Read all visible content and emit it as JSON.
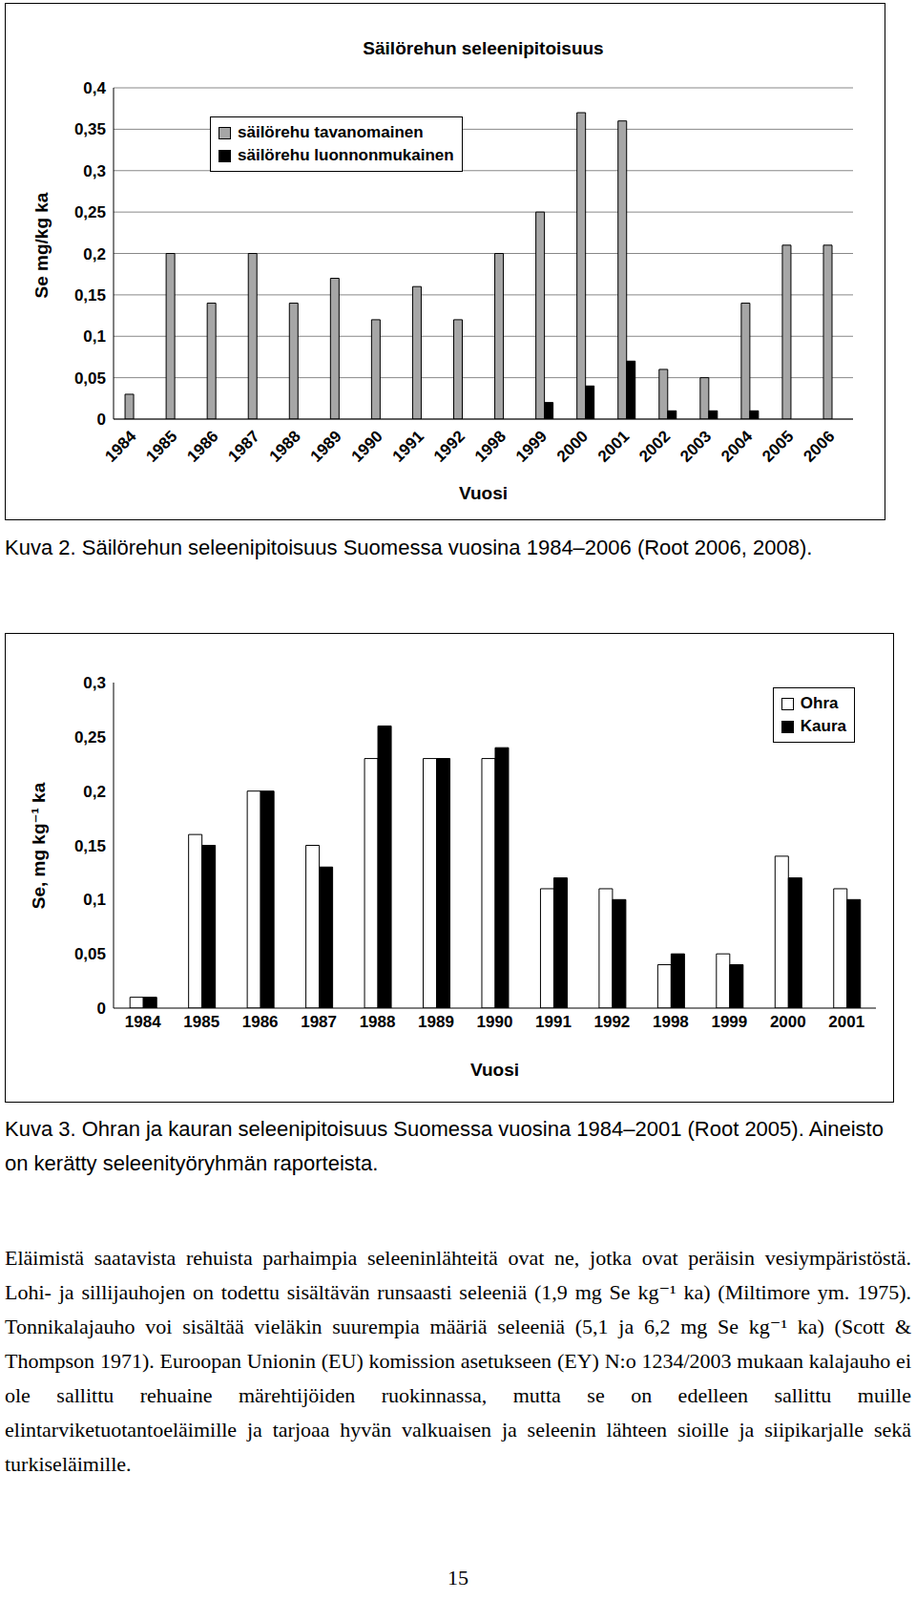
{
  "chart_data": [
    {
      "type": "bar",
      "title": "Säilörehun seleenipitoisuus",
      "x_label": "Vuosi",
      "y_label": "Se mg/kg ka",
      "categories": [
        "1984",
        "1985",
        "1986",
        "1987",
        "1988",
        "1989",
        "1990",
        "1991",
        "1992",
        "1998",
        "1999",
        "2000",
        "2001",
        "2002",
        "2003",
        "2004",
        "2005",
        "2006"
      ],
      "series": [
        {
          "name": "säilörehu tavanomainen",
          "color": "#a6a6a6",
          "values": [
            0.03,
            0.2,
            0.14,
            0.2,
            0.14,
            0.17,
            0.12,
            0.16,
            0.12,
            0.2,
            0.25,
            0.37,
            0.36,
            0.06,
            0.05,
            0.14,
            0.21,
            0.21
          ]
        },
        {
          "name": "säilörehu luonnonmukainen",
          "color": "#000000",
          "values": [
            null,
            null,
            null,
            null,
            null,
            null,
            null,
            null,
            null,
            null,
            0.02,
            0.04,
            0.07,
            0.01,
            0.01,
            0.01,
            null,
            null
          ]
        }
      ],
      "ylim": [
        0,
        0.4
      ],
      "yticks": [
        0,
        {
          "value": 0.05,
          "label": "0,05"
        },
        {
          "value": 0.1,
          "label": "0,1"
        },
        {
          "value": 0.15,
          "label": "0,15"
        },
        {
          "value": 0.2,
          "label": "0,2"
        },
        {
          "value": 0.25,
          "label": "0,25"
        },
        {
          "value": 0.3,
          "label": "0,3"
        },
        {
          "value": 0.35,
          "label": "0,35"
        },
        {
          "value": 0.4,
          "label": "0,4"
        }
      ],
      "grid": true,
      "legend": "upper left"
    },
    {
      "type": "bar",
      "x_label": "Vuosi",
      "y_label": "Se, mg kg⁻¹ ka",
      "categories": [
        "1984",
        "1985",
        "1986",
        "1987",
        "1988",
        "1989",
        "1990",
        "1991",
        "1992",
        "1998",
        "1999",
        "2000",
        "2001"
      ],
      "series": [
        {
          "name": "Ohra",
          "color": "#ffffff",
          "values": [
            0.01,
            0.16,
            0.2,
            0.15,
            0.23,
            0.23,
            0.23,
            0.11,
            0.11,
            0.04,
            0.05,
            0.14,
            0.11
          ]
        },
        {
          "name": "Kaura",
          "color": "#000000",
          "values": [
            0.01,
            0.15,
            0.2,
            0.13,
            0.26,
            0.23,
            0.24,
            0.12,
            0.1,
            0.05,
            0.04,
            0.12,
            0.1
          ]
        }
      ],
      "ylim": [
        0,
        0.3
      ],
      "yticks": [
        0,
        {
          "value": 0.05,
          "label": "0,05"
        },
        {
          "value": 0.1,
          "label": "0,1"
        },
        {
          "value": 0.15,
          "label": "0,15"
        },
        {
          "value": 0.2,
          "label": "0,2"
        },
        {
          "value": 0.25,
          "label": "0,25"
        },
        {
          "value": 0.3,
          "label": "0,3"
        }
      ],
      "grid": false,
      "legend": "upper right"
    }
  ],
  "captions": [
    "Kuva 2. Säilörehun seleenipitoisuus Suomessa vuosina 1984–2006 (Root 2006, 2008).",
    "Kuva 3. Ohran ja kauran seleenipitoisuus Suomessa vuosina 1984–2001 (Root 2005). Aineisto on kerätty seleenityöryhmän raporteista."
  ],
  "paragraph": "Eläimistä saatavista rehuista parhaimpia seleeninlähteitä ovat ne, jotka ovat peräisin vesiympäristöstä. Lohi- ja sillijauhojen on todettu sisältävän runsaasti seleeniä (1,9 mg Se kg⁻¹ ka) (Miltimore ym. 1975). Tonnikalajauho voi sisältää vieläkin suurempia määriä seleeniä (5,1 ja 6,2 mg Se kg⁻¹ ka) (Scott & Thompson 1971). Euroopan Unionin (EU) komission asetukseen (EY) N:o 1234/2003 mukaan kalajauho ei ole sallittu rehuaine märehtijöiden ruokinnassa, mutta se on edelleen sallittu muille elintarviketuotantoeläimille ja tarjoaa hyvän valkuaisen ja seleenin lähteen sioille ja siipikarjalle sekä turkiseläimille.",
  "page_number": "15"
}
